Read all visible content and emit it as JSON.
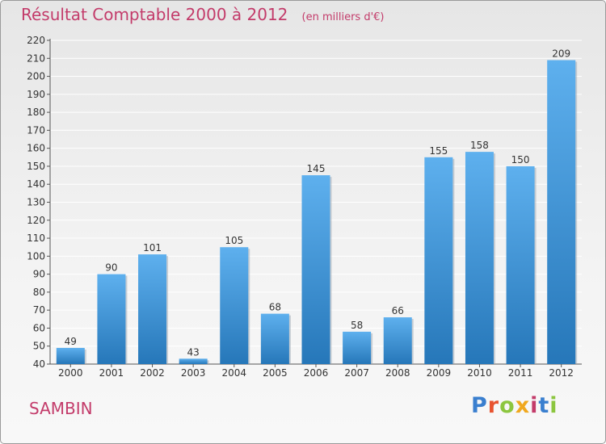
{
  "title": "Résultat Comptable 2000 à 2012",
  "subtitle": "(en milliers d'€)",
  "commune": "SAMBIN",
  "brand": {
    "text": "Proxiti",
    "letter_colors": [
      "#3a7fcf",
      "#e8532f",
      "#8cc63f",
      "#f0a81e",
      "#c33b6a",
      "#3a7fcf",
      "#8cc63f"
    ]
  },
  "colors": {
    "title": "#c33b6a",
    "bar_top": "#5eb0ee",
    "bar_bottom": "#2677b9",
    "grid": "#ffffff"
  },
  "chart_data": {
    "type": "bar",
    "title": "Résultat Comptable 2000 à 2012",
    "subtitle": "(en milliers d'€)",
    "xlabel": "",
    "ylabel": "",
    "categories": [
      "2000",
      "2001",
      "2002",
      "2003",
      "2004",
      "2005",
      "2006",
      "2007",
      "2008",
      "2009",
      "2010",
      "2011",
      "2012"
    ],
    "values": [
      49,
      90,
      101,
      43,
      105,
      68,
      145,
      58,
      66,
      155,
      158,
      150,
      209
    ],
    "ylim": [
      40,
      220
    ],
    "yticks": [
      40,
      50,
      60,
      70,
      80,
      90,
      100,
      110,
      120,
      130,
      140,
      150,
      160,
      170,
      180,
      190,
      200,
      210,
      220
    ],
    "grid": true,
    "data_labels": true,
    "legend": "none"
  }
}
